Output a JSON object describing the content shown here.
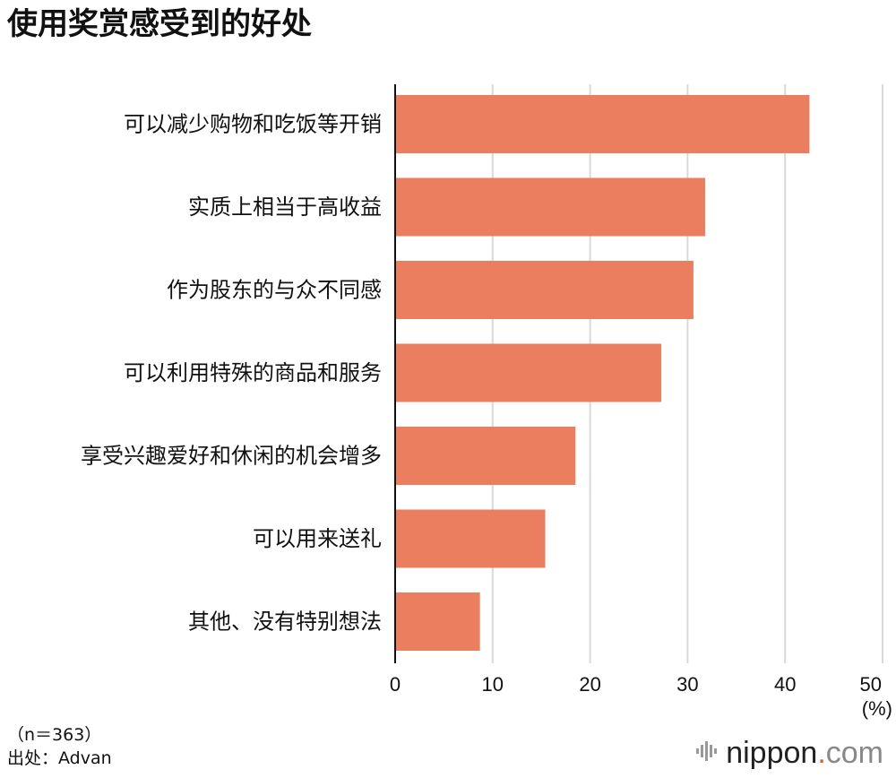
{
  "title": "使用奖赏感受到的好处",
  "footnote": {
    "n": "（n＝363）",
    "source": "出处：Advan"
  },
  "logo": {
    "name": "nippon",
    "dot": ".",
    "suffix": "com"
  },
  "colors": {
    "bar": "#EA7E5F",
    "grid": "#d9d9d9",
    "axis": "#111111"
  },
  "chart_data": {
    "type": "bar",
    "orientation": "horizontal",
    "categories": [
      "可以减少购物和吃饭等开销",
      "实质上相当于高收益",
      "作为股东的与众不同感",
      "可以利用特殊的商品和服务",
      "享受兴趣爱好和休闲的机会增多",
      "可以用来送礼",
      "其他、没有特别想法"
    ],
    "values": [
      42.5,
      31.8,
      30.6,
      27.3,
      18.5,
      15.4,
      8.7
    ],
    "xlim": [
      0,
      50
    ],
    "xticks": [
      0,
      10,
      20,
      30,
      40,
      50
    ],
    "xunit": "(%)",
    "grid": true
  }
}
